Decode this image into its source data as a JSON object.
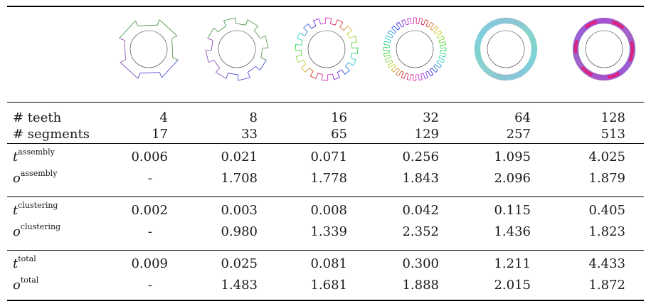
{
  "teeth_counts": [
    4,
    8,
    16,
    32,
    64,
    128
  ],
  "table": {
    "header_rows": [
      {
        "label_symbol": "#",
        "label_text": "teeth",
        "values": [
          "4",
          "8",
          "16",
          "32",
          "64",
          "128"
        ]
      },
      {
        "label_symbol": "#",
        "label_text": "segments",
        "values": [
          "17",
          "33",
          "65",
          "129",
          "257",
          "513"
        ]
      }
    ],
    "groups": [
      {
        "rows": [
          {
            "var": "t",
            "sup": "assembly",
            "values": [
              "0.006",
              "0.021",
              "0.071",
              "0.256",
              "1.095",
              "4.025"
            ]
          },
          {
            "var": "o",
            "sup": "assembly",
            "values": [
              "-",
              "1.708",
              "1.778",
              "1.843",
              "2.096",
              "1.879"
            ]
          }
        ]
      },
      {
        "rows": [
          {
            "var": "t",
            "sup": "clustering",
            "values": [
              "0.002",
              "0.003",
              "0.008",
              "0.042",
              "0.115",
              "0.405"
            ]
          },
          {
            "var": "o",
            "sup": "clustering",
            "values": [
              "-",
              "0.980",
              "1.339",
              "2.352",
              "1.436",
              "1.823"
            ]
          }
        ]
      },
      {
        "rows": [
          {
            "var": "t",
            "sup": "total",
            "values": [
              "0.009",
              "0.025",
              "0.081",
              "0.300",
              "1.211",
              "4.433"
            ]
          },
          {
            "var": "o",
            "sup": "total",
            "values": [
              "-",
              "1.483",
              "1.681",
              "1.888",
              "2.015",
              "1.872"
            ]
          }
        ]
      }
    ]
  }
}
